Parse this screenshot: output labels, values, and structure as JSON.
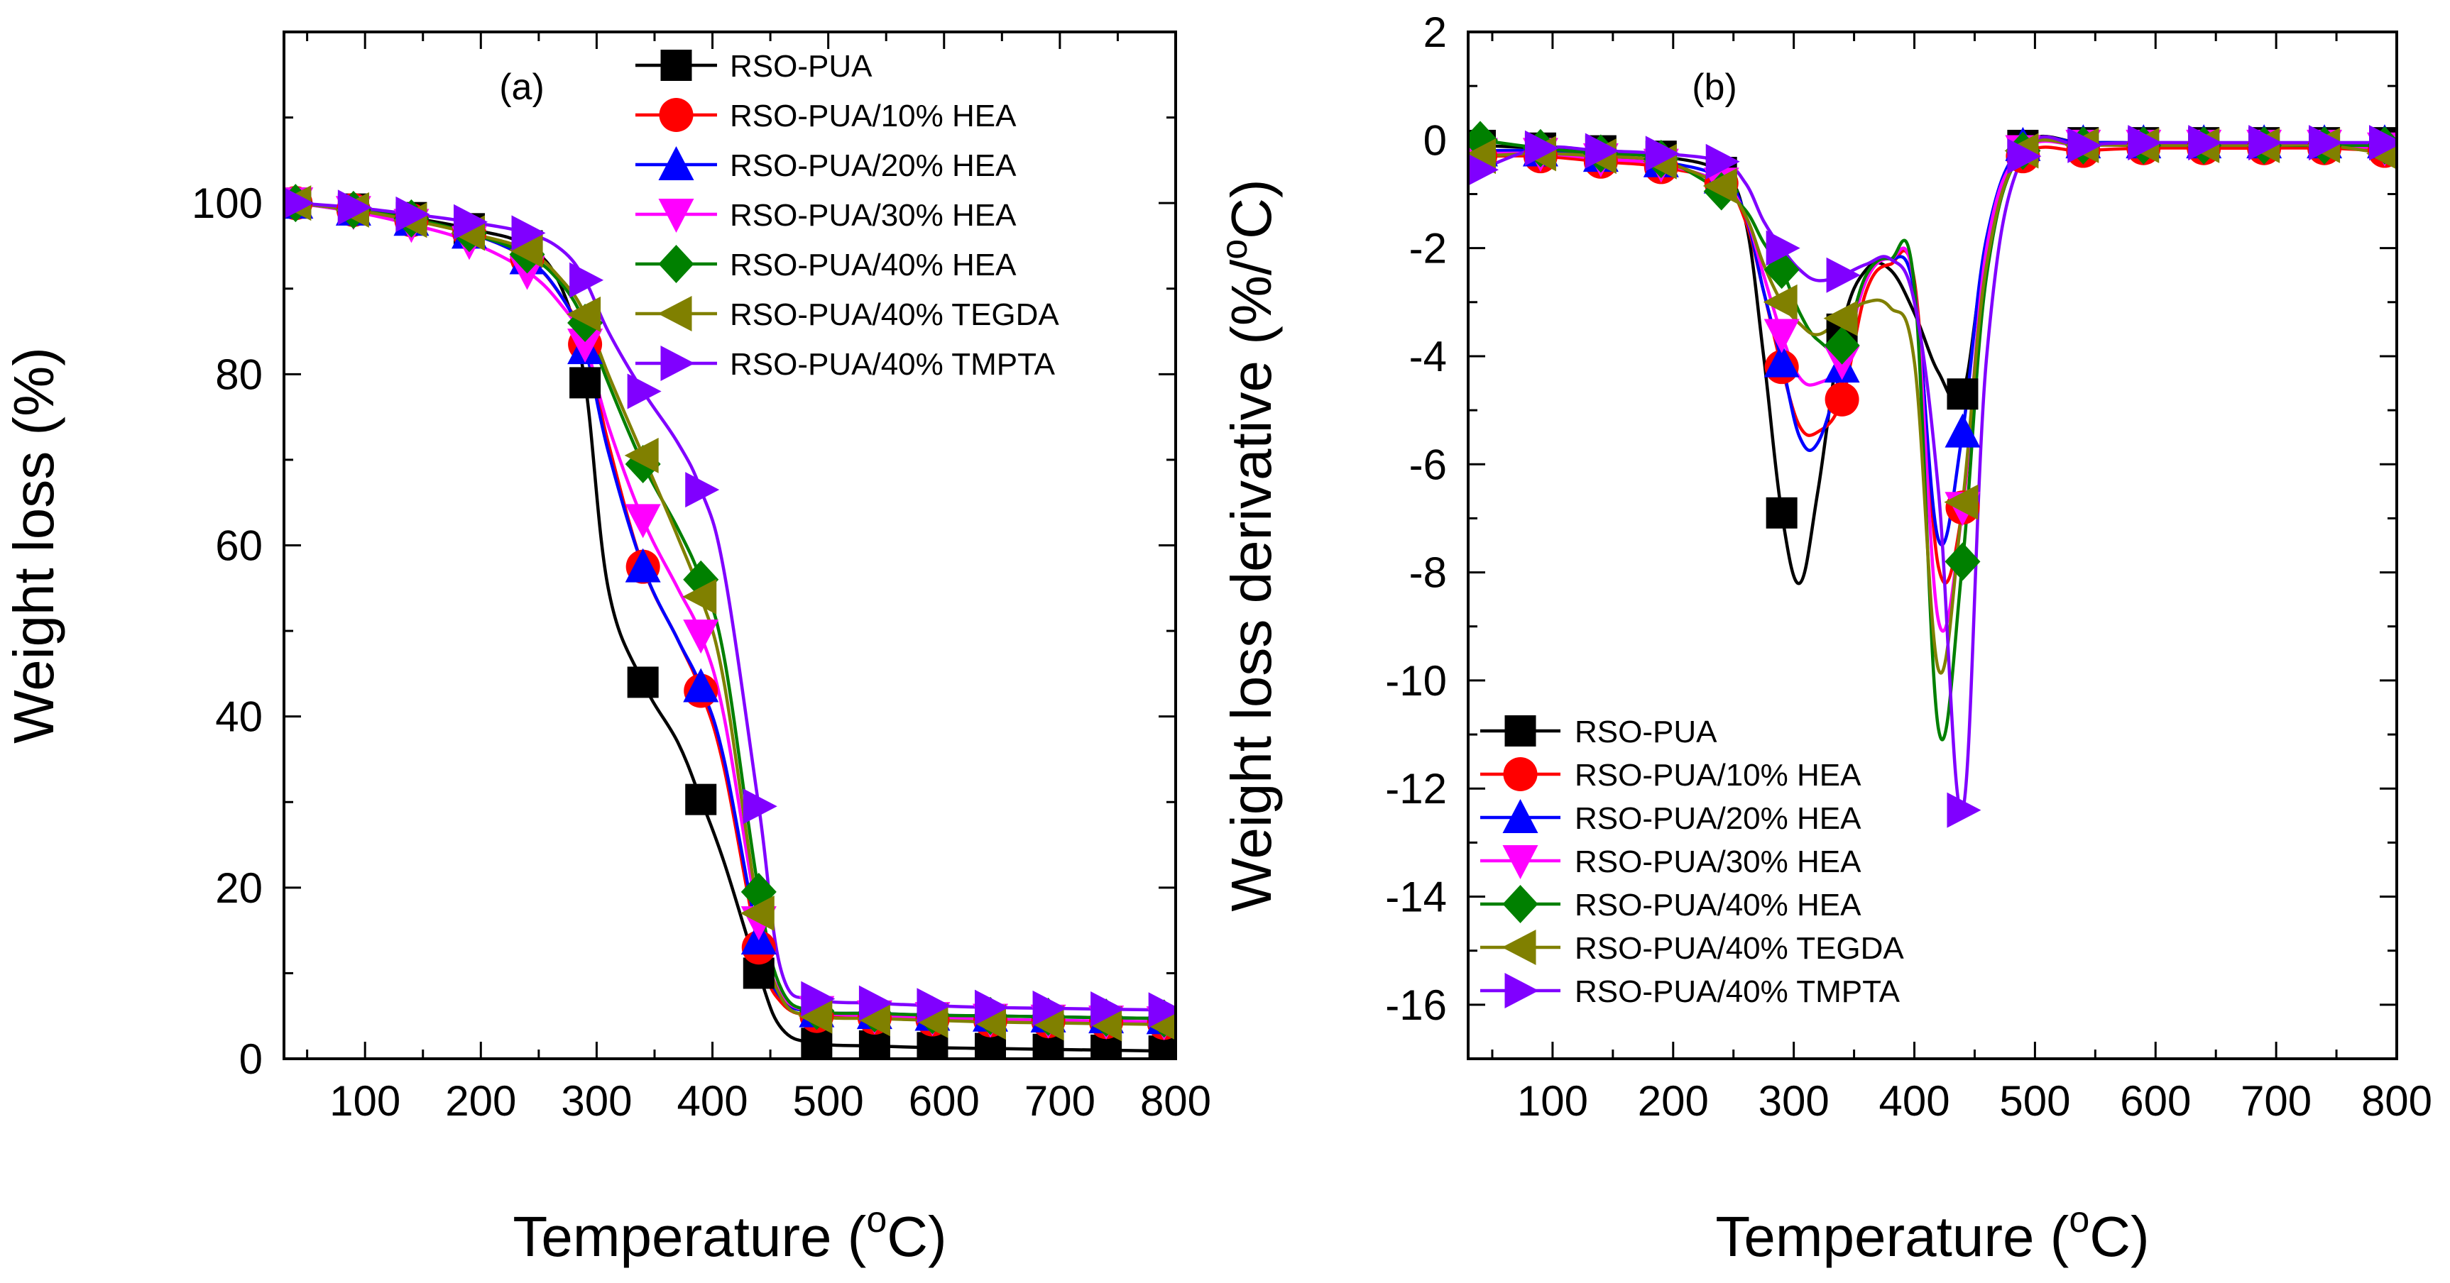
{
  "chart_data": [
    {
      "type": "line",
      "panel_label": "(a)",
      "xlabel": "Temperature (",
      "xlabel_sup": "o",
      "xlabel_suffix": "C)",
      "ylabel": "Weight loss (%)",
      "xlim": [
        30,
        800
      ],
      "ylim": [
        0,
        120
      ],
      "xticks": [
        100,
        200,
        300,
        400,
        500,
        600,
        700,
        800
      ],
      "yticks": [
        0,
        20,
        40,
        60,
        80,
        100
      ],
      "legend_position": "top-right",
      "grid": false,
      "series": [
        {
          "name": "RSO-PUA",
          "color": "#000000",
          "marker": "square",
          "x": [
            40,
            90,
            140,
            190,
            240,
            270,
            290,
            310,
            340,
            370,
            390,
            410,
            440,
            460,
            490,
            540,
            590,
            640,
            690,
            740,
            790
          ],
          "y": [
            100,
            99.3,
            98.3,
            97,
            95,
            90,
            79,
            55,
            44,
            37,
            30.3,
            23,
            10,
            3.5,
            1.8,
            1.5,
            1.3,
            1.2,
            1.1,
            1.0,
            0.9
          ]
        },
        {
          "name": "RSO-PUA/10% HEA",
          "color": "#ff0000",
          "marker": "circle",
          "x": [
            40,
            90,
            140,
            190,
            240,
            270,
            290,
            310,
            340,
            370,
            390,
            410,
            440,
            460,
            490,
            540,
            590,
            640,
            690,
            740,
            790
          ],
          "y": [
            100,
            99.2,
            98,
            96.5,
            93.5,
            89,
            83.5,
            72,
            57.5,
            49,
            43,
            34,
            13,
            6.5,
            5,
            4.8,
            4.6,
            4.5,
            4.4,
            4.3,
            4.2
          ]
        },
        {
          "name": "RSO-PUA/20% HEA",
          "color": "#0000ff",
          "marker": "triangle-up",
          "x": [
            40,
            90,
            140,
            190,
            240,
            270,
            290,
            310,
            340,
            370,
            390,
            410,
            440,
            460,
            490,
            540,
            590,
            640,
            690,
            740,
            790
          ],
          "y": [
            100,
            99.2,
            98,
            96.5,
            93.5,
            89,
            83,
            71,
            57.5,
            49,
            43.5,
            35,
            14,
            7,
            5.5,
            5.3,
            5.1,
            5.0,
            4.9,
            4.8,
            4.7
          ]
        },
        {
          "name": "RSO-PUA/30% HEA",
          "color": "#ff00ff",
          "marker": "triangle-down",
          "x": [
            40,
            90,
            140,
            190,
            240,
            270,
            290,
            310,
            340,
            370,
            390,
            410,
            440,
            460,
            490,
            540,
            590,
            640,
            690,
            740,
            790
          ],
          "y": [
            100,
            99,
            97.5,
            95.5,
            92,
            88,
            83.5,
            74,
            63,
            55,
            49.5,
            40,
            16,
            7.5,
            5.5,
            5,
            4.8,
            4.6,
            4.5,
            4.4,
            4.3
          ]
        },
        {
          "name": "RSO-PUA/40% HEA",
          "color": "#008000",
          "marker": "diamond",
          "x": [
            40,
            90,
            140,
            190,
            240,
            270,
            290,
            310,
            340,
            370,
            390,
            410,
            440,
            460,
            490,
            540,
            590,
            640,
            690,
            740,
            790
          ],
          "y": [
            100,
            99.2,
            98.2,
            96.5,
            94,
            90.5,
            86,
            79,
            69.5,
            62,
            56,
            47,
            19.5,
            8,
            5.6,
            5.3,
            5.1,
            5.0,
            4.9,
            4.8,
            4.7
          ]
        },
        {
          "name": "RSO-PUA/40% TEGDA",
          "color": "#808000",
          "marker": "triangle-left",
          "x": [
            40,
            90,
            140,
            190,
            240,
            270,
            290,
            310,
            340,
            370,
            390,
            410,
            440,
            460,
            490,
            540,
            590,
            640,
            690,
            740,
            790
          ],
          "y": [
            100,
            99.2,
            98,
            96.5,
            94.5,
            91,
            87,
            80,
            70.5,
            61,
            54,
            44,
            17,
            7,
            5,
            4.7,
            4.5,
            4.3,
            4.2,
            4.1,
            4.0
          ]
        },
        {
          "name": "RSO-PUA/40% TMPTA",
          "color": "#8000ff",
          "marker": "triangle-right",
          "x": [
            40,
            90,
            140,
            190,
            240,
            270,
            290,
            310,
            340,
            370,
            390,
            410,
            440,
            460,
            490,
            540,
            590,
            640,
            690,
            740,
            790
          ],
          "y": [
            100,
            99.5,
            98.7,
            97.8,
            96.5,
            94.5,
            91,
            85,
            78,
            72,
            66.5,
            57,
            29.5,
            10,
            7,
            6.5,
            6.2,
            6.0,
            5.9,
            5.8,
            5.7
          ]
        }
      ]
    },
    {
      "type": "line",
      "panel_label": "(b)",
      "xlabel": "Temperature (",
      "xlabel_sup": "o",
      "xlabel_suffix": "C)",
      "ylabel": "Weight loss derivative (%/",
      "ylabel_sup": "o",
      "ylabel_suffix": "C)",
      "xlim": [
        30,
        800
      ],
      "ylim": [
        -17,
        2
      ],
      "xticks": [
        100,
        200,
        300,
        400,
        500,
        600,
        700,
        800
      ],
      "yticks": [
        -16,
        -14,
        -12,
        -10,
        -8,
        -6,
        -4,
        -2,
        0,
        2
      ],
      "legend_position": "bottom-left",
      "grid": false,
      "series": [
        {
          "name": "RSO-PUA",
          "color": "#000000",
          "marker": "square",
          "x": [
            40,
            90,
            140,
            190,
            240,
            260,
            275,
            290,
            305,
            320,
            340,
            360,
            380,
            400,
            420,
            440,
            460,
            490,
            540,
            590,
            640,
            690,
            740,
            790
          ],
          "y": [
            -0.1,
            -0.15,
            -0.2,
            -0.3,
            -0.6,
            -1.5,
            -4,
            -6.9,
            -8.2,
            -6.5,
            -3.5,
            -2.4,
            -2.4,
            -3.2,
            -4.3,
            -4.7,
            -2,
            -0.1,
            -0.05,
            -0.05,
            -0.05,
            -0.05,
            -0.05,
            -0.05
          ]
        },
        {
          "name": "RSO-PUA/10% HEA",
          "color": "#ff0000",
          "marker": "circle",
          "x": [
            40,
            90,
            140,
            190,
            240,
            260,
            275,
            290,
            305,
            320,
            340,
            360,
            380,
            400,
            420,
            440,
            460,
            490,
            540,
            590,
            640,
            690,
            740,
            790
          ],
          "y": [
            -0.3,
            -0.3,
            -0.4,
            -0.5,
            -0.8,
            -1.5,
            -2.8,
            -4.2,
            -5.3,
            -5.4,
            -4.8,
            -2.8,
            -2.3,
            -2.6,
            -7.9,
            -6.8,
            -2,
            -0.3,
            -0.2,
            -0.15,
            -0.15,
            -0.15,
            -0.15,
            -0.2
          ]
        },
        {
          "name": "RSO-PUA/20% HEA",
          "color": "#0000ff",
          "marker": "triangle-up",
          "x": [
            40,
            90,
            140,
            190,
            240,
            260,
            275,
            290,
            305,
            320,
            340,
            360,
            380,
            400,
            420,
            440,
            460,
            490,
            540,
            590,
            640,
            690,
            740,
            790
          ],
          "y": [
            -0.2,
            -0.2,
            -0.3,
            -0.4,
            -0.7,
            -1.4,
            -2.8,
            -4.1,
            -5.5,
            -5.6,
            -4.2,
            -2.6,
            -2.2,
            -2.8,
            -7.4,
            -5.4,
            -1.8,
            -0.1,
            -0.05,
            -0.05,
            -0.05,
            -0.05,
            -0.05,
            -0.05
          ]
        },
        {
          "name": "RSO-PUA/30% HEA",
          "color": "#ff00ff",
          "marker": "triangle-down",
          "x": [
            40,
            90,
            140,
            190,
            240,
            260,
            275,
            290,
            305,
            320,
            340,
            360,
            380,
            400,
            420,
            440,
            460,
            490,
            540,
            590,
            640,
            690,
            740,
            790
          ],
          "y": [
            -0.25,
            -0.25,
            -0.35,
            -0.45,
            -0.8,
            -1.4,
            -2.5,
            -3.6,
            -4.4,
            -4.5,
            -4.1,
            -2.6,
            -2.2,
            -2.7,
            -8.9,
            -6.8,
            -2,
            -0.2,
            -0.1,
            -0.1,
            -0.1,
            -0.1,
            -0.1,
            -0.15
          ]
        },
        {
          "name": "RSO-PUA/40% HEA",
          "color": "#008000",
          "marker": "diamond",
          "x": [
            40,
            90,
            140,
            190,
            240,
            260,
            275,
            290,
            305,
            320,
            340,
            360,
            380,
            400,
            420,
            440,
            460,
            490,
            540,
            590,
            640,
            690,
            740,
            790
          ],
          "y": [
            0.0,
            -0.15,
            -0.25,
            -0.35,
            -0.95,
            -1.3,
            -1.9,
            -2.4,
            -3.2,
            -3.7,
            -3.8,
            -2.5,
            -2.2,
            -2.7,
            -10.9,
            -7.8,
            -2.5,
            -0.2,
            -0.1,
            -0.1,
            -0.1,
            -0.1,
            -0.1,
            -0.1
          ]
        },
        {
          "name": "RSO-PUA/40% TEGDA",
          "color": "#808000",
          "marker": "triangle-left",
          "x": [
            40,
            90,
            140,
            190,
            240,
            260,
            275,
            290,
            305,
            320,
            340,
            360,
            380,
            400,
            420,
            440,
            460,
            490,
            540,
            590,
            640,
            690,
            740,
            790
          ],
          "y": [
            -0.3,
            -0.25,
            -0.3,
            -0.4,
            -0.85,
            -1.4,
            -2.3,
            -3.0,
            -3.4,
            -3.6,
            -3.3,
            -3.0,
            -3.1,
            -4.1,
            -9.8,
            -6.7,
            -2.3,
            -0.2,
            -0.1,
            -0.1,
            -0.1,
            -0.1,
            -0.1,
            -0.25
          ]
        },
        {
          "name": "RSO-PUA/40% TMPTA",
          "color": "#8000ff",
          "marker": "triangle-right",
          "x": [
            40,
            90,
            140,
            190,
            240,
            260,
            275,
            290,
            305,
            320,
            340,
            360,
            380,
            400,
            420,
            440,
            460,
            490,
            540,
            590,
            640,
            690,
            740,
            790
          ],
          "y": [
            -0.55,
            -0.15,
            -0.2,
            -0.25,
            -0.4,
            -0.8,
            -1.5,
            -2.0,
            -2.4,
            -2.6,
            -2.5,
            -2.3,
            -2.2,
            -3.0,
            -6.5,
            -12.4,
            -4,
            -0.3,
            -0.1,
            -0.05,
            -0.05,
            -0.05,
            -0.05,
            -0.05
          ]
        }
      ]
    }
  ]
}
